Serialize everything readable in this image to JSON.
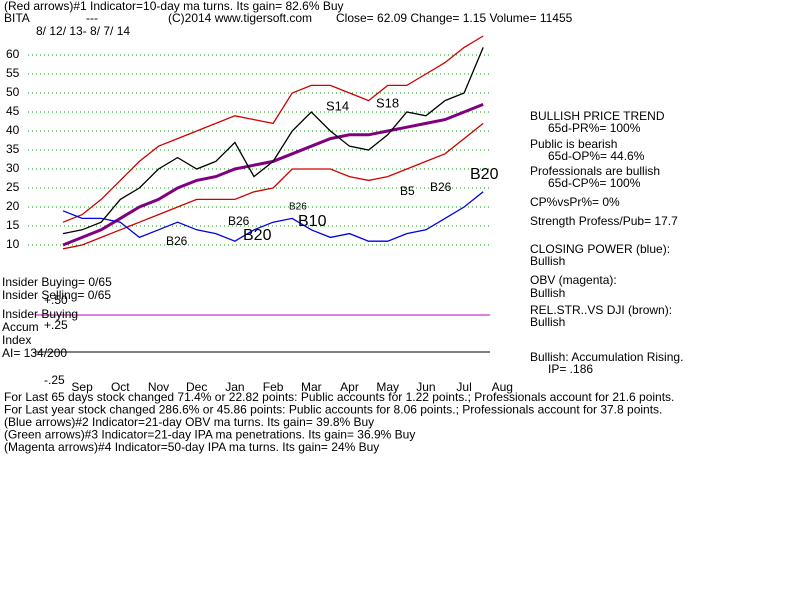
{
  "chart_data": {
    "type": "line",
    "header": [
      "(Red arrows)#1 Indicator=10-day ma turns. Its gain= 82.6% Buy",
      "BITA",
      "---",
      "(C)2014 www.tigersoft.com",
      "Close=  62.09  Change= 1.15 Volume= 11455",
      "8/ 12/ 13-  8/ 7/ 14"
    ],
    "categories": [
      null,
      "Sep",
      null,
      "Oct",
      null,
      "Nov",
      null,
      "Dec",
      null,
      "Jan",
      null,
      "Feb",
      null,
      "Mar",
      null,
      "Apr",
      null,
      "May",
      null,
      "Jun",
      null,
      "Jul",
      null,
      "Aug"
    ],
    "series": [
      {
        "name": "Upper band",
        "color": "#d00000",
        "values": [
          16,
          18,
          22,
          27,
          32,
          36,
          38,
          40,
          42,
          44,
          43,
          42,
          50,
          52,
          52,
          50,
          48,
          52,
          52,
          55,
          58,
          62,
          65,
          null
        ]
      },
      {
        "name": "Lower band",
        "color": "#d00000",
        "values": [
          9,
          10,
          12,
          14,
          16,
          18,
          20,
          22,
          22,
          22,
          24,
          25,
          30,
          30,
          30,
          28,
          27,
          28,
          30,
          32,
          34,
          38,
          42,
          null
        ]
      },
      {
        "name": "Moving average",
        "color": "#800080",
        "values": [
          10,
          12,
          14,
          17,
          20,
          22,
          25,
          27,
          28,
          30,
          31,
          32,
          34,
          36,
          38,
          39,
          39,
          40,
          41,
          42,
          43,
          45,
          47,
          null
        ]
      },
      {
        "name": "Closing Power",
        "color": "#0000e0",
        "values": [
          19,
          17,
          17,
          16,
          12,
          14,
          16,
          14,
          13,
          11,
          14,
          16,
          17,
          14,
          12,
          13,
          11,
          11,
          13,
          14,
          17,
          20,
          24,
          null
        ]
      },
      {
        "name": "Price",
        "color": "#000000",
        "values": [
          13,
          14,
          16,
          22,
          25,
          30,
          33,
          30,
          32,
          37,
          28,
          32,
          40,
          45,
          40,
          36,
          35,
          39,
          45,
          44,
          48,
          50,
          62,
          null
        ]
      }
    ],
    "ylim": [
      8,
      66
    ],
    "yticks": [
      10,
      15,
      20,
      25,
      30,
      35,
      40,
      45,
      50,
      55,
      60
    ],
    "grid": true,
    "annotations": [
      "S14",
      "S18",
      "B26",
      "B20",
      "B26",
      "B10",
      "B26",
      "B5",
      "B26",
      "B20"
    ],
    "panel_labels": [
      "Insider Buying= 0/65",
      "Insider Selling= 0/65",
      "+.50",
      "Insider Buying",
      "Accum",
      "+.25",
      "Index",
      "AI= 134/200",
      "-.25"
    ],
    "side_panel": [
      "BULLISH PRICE TREND",
      "65d-PR%= 100%",
      "Public is bearish",
      "65d-OP%= 44.6%",
      "Professionals are bullish",
      "65d-CP%= 100%",
      "CP%vsPr%=  0%",
      "Strength Profess/Pub= 17.7",
      "CLOSING POWER (blue):",
      "Bullish",
      "OBV (magenta):",
      "Bullish",
      "REL.STR..VS DJI (brown):",
      "Bullish",
      "Bullish: Accumulation Rising.",
      "IP=  .186"
    ],
    "footer": [
      "For Last 65 days stock changed  71.4% or  22.82 points:  Public accounts for  1.22 points.;  Professionals account for  21.6 points.",
      "For Last year stock changed  286.6% or  45.86 points:  Public accounts for  8.06 points.;  Professionals account for  37.8 points.",
      "(Blue arrows)#2 Indicator=21-day OBV ma turns. Its gain= 39.8% Buy",
      "(Green arrows)#3 Indicator=21-day IPA ma penetrations. Its gain= 36.9% Buy",
      "(Magenta arrows)#4 Indicator=50-day IPA ma turns. Its gain= 24% Buy"
    ]
  }
}
